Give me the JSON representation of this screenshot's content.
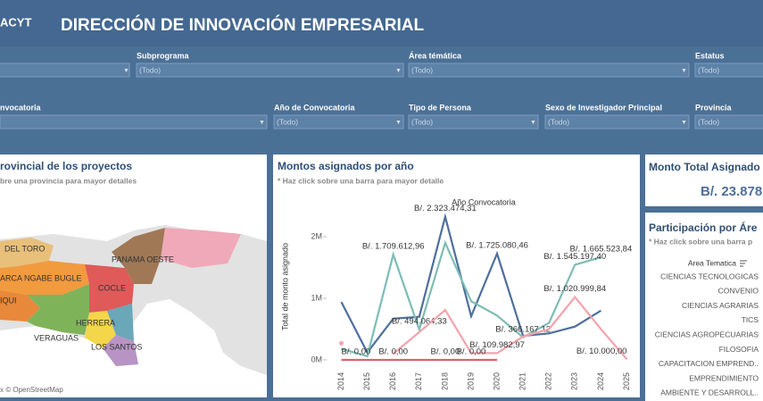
{
  "header": {
    "logo": "ACYT",
    "title": "DIRECCIÓN DE INNOVACIÓN EMPRESARIAL"
  },
  "filters": [
    {
      "label": "Subprograma",
      "value": "(Todo)"
    },
    {
      "label": "Área témática",
      "value": "(Todo)"
    },
    {
      "label": "Estatus",
      "value": "(Todo)"
    },
    {
      "label": "nvocatoria"
    },
    {
      "label": "Año de Convocatoria",
      "value": "(Todo)"
    },
    {
      "label": "Tipo de Persona",
      "value": "(Todo)"
    },
    {
      "label": "Sexo de Investigador Principal",
      "value": "(Todo)"
    },
    {
      "label": "Provincia",
      "value": "(Todo)"
    }
  ],
  "map_panel": {
    "title": "rovincial de los proyectos",
    "subtitle": "bre una provincia para mayor detalles",
    "regions": [
      "DEL TORO",
      "PANAMA OESTE",
      "ARCA NGABE BUGLE",
      "COCLE",
      "IQUI",
      "HERRERA",
      "VERAGUAS",
      "LOS SANTOS"
    ],
    "credit": "x © OpenStreetMap"
  },
  "chart_data": {
    "type": "line",
    "title": "Montos asignados por año",
    "subtitle": "* Haz click sobre una barra para mayor detalle",
    "x_header": "Año Convocatoria",
    "y_label": "Total de monto asignado",
    "categories": [
      "2014",
      "2015",
      "2016",
      "2017",
      "2018",
      "2019",
      "2020",
      "2021",
      "2022",
      "2023",
      "2024",
      "2025"
    ],
    "ylim": [
      -100000,
      2700000
    ],
    "yticks": [
      {
        "value": 0,
        "label": "0M"
      },
      {
        "value": 1000000,
        "label": "1M"
      },
      {
        "value": 2000000,
        "label": "2M"
      }
    ],
    "series": [
      {
        "color": "#4e6f9c",
        "values": [
          940000,
          120000,
          670000,
          700000,
          2323474.31,
          710000,
          1725080.46,
          390000,
          430000,
          540000,
          800000,
          null
        ],
        "value_labels": [
          null,
          null,
          null,
          null,
          "B/. 2.323.474,31",
          null,
          "B/. 1.725.080,46",
          null,
          null,
          null,
          null,
          null
        ]
      },
      {
        "color": "#7dbdb5",
        "values": [
          180000,
          60000,
          1709612.96,
          494064.33,
          1900000,
          950000,
          720000,
          366167.12,
          600000,
          1545197.4,
          1665523.84,
          null
        ],
        "value_labels": [
          null,
          null,
          "B/. 1.709.612,96",
          "B/. 494.064,33",
          null,
          null,
          null,
          "B/. 366.167,12",
          null,
          "B/. 1.545.197,40",
          "B/. 1.665.523,84",
          null
        ]
      },
      {
        "color": "#f4a3ac",
        "values": [
          270000,
          null,
          100000,
          450000,
          810000,
          110000,
          109982.97,
          380000,
          500000,
          1020999.84,
          500000,
          10000
        ],
        "value_labels": [
          null,
          null,
          null,
          null,
          null,
          null,
          "B/. 109.982,97",
          null,
          null,
          "B/. 1.020.999,84",
          null,
          "B/. 10.000,00"
        ]
      },
      {
        "color": "#d9646b",
        "values": [
          0,
          0,
          0,
          0,
          0,
          0,
          0,
          null,
          null,
          null,
          null,
          null
        ],
        "value_labels": [
          "B/. 0,00",
          null,
          "B/. 0,00",
          null,
          "B/. 0,00",
          "B/. 0,00",
          null,
          null,
          null,
          null,
          null,
          null
        ]
      }
    ]
  },
  "total_panel": {
    "title": "Monto Total Asignado",
    "value": "B/. 23.878"
  },
  "area_panel": {
    "title": "Participación por Áre",
    "subtitle": "* Haz click sobre una barra p",
    "header": "Area Tematica",
    "items": [
      "CIENCIAS TECNOLOGICAS",
      "CONVENIO",
      "CIENCIAS AGRARIAS",
      "TICS",
      "CIENCIAS AGROPECUARIAS",
      "FILOSOFIA",
      "CAPACITACION EMPREND..",
      "EMPRENDIMIENTO",
      "AMBIENTE Y DESARROLL.."
    ]
  }
}
